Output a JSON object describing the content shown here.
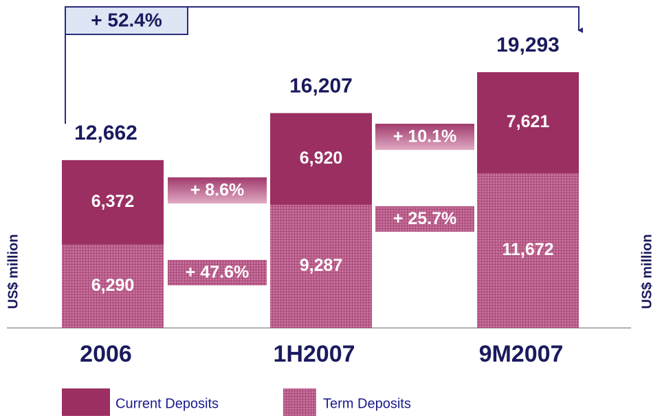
{
  "chart_data": {
    "type": "stacked_bar",
    "categories": [
      "2006",
      "1H2007",
      "9M2007"
    ],
    "series": [
      {
        "name": "Term Deposits",
        "color": "#c0608f",
        "pattern": "crosshatch",
        "values": [
          6290,
          9287,
          11672
        ],
        "value_labels": [
          "6,290",
          "9,287",
          "11,672"
        ]
      },
      {
        "name": "Current Deposits",
        "color": "#9b2f62",
        "values": [
          6372,
          6920,
          7621
        ],
        "value_labels": [
          "6,372",
          "6,920",
          "7,621"
        ]
      }
    ],
    "totals": {
      "values": [
        12662,
        16207,
        19293
      ],
      "value_labels": [
        "12,662",
        "16,207",
        "19,293"
      ]
    },
    "growth": {
      "total": "+ 52.4%",
      "current": [
        "+ 8.6%",
        "+ 10.1%"
      ],
      "term": [
        "+ 47.6%",
        "+ 25.7%"
      ]
    },
    "ylabel": "US$ million",
    "y2label": "US$ million"
  }
}
